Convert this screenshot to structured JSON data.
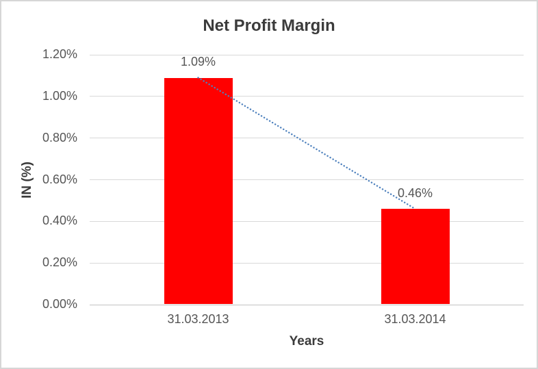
{
  "chart_data": {
    "type": "bar",
    "title": "Net Profit Margin",
    "xlabel": "Years",
    "ylabel": "IN (%)",
    "categories": [
      "31.03.2013",
      "31.03.2014"
    ],
    "values": [
      1.09,
      0.46
    ],
    "data_labels": [
      "1.09%",
      "0.46%"
    ],
    "yticks": [
      {
        "value": 0.0,
        "label": "0.00%"
      },
      {
        "value": 0.2,
        "label": "0.20%"
      },
      {
        "value": 0.4,
        "label": "0.40%"
      },
      {
        "value": 0.6,
        "label": "0.60%"
      },
      {
        "value": 0.8,
        "label": "0.80%"
      },
      {
        "value": 1.0,
        "label": "1.00%"
      },
      {
        "value": 1.2,
        "label": "1.20%"
      }
    ],
    "ylim": [
      0,
      1.2
    ],
    "grid": true,
    "legend": "none",
    "bar_color": "#FF0000",
    "trendline": {
      "type": "linear",
      "style": "dotted",
      "color": "#4E81BD",
      "endpoint_values": [
        1.09,
        0.46
      ]
    },
    "colors": {
      "gridline": "#D9D9D9",
      "axis_line": "#C3C3C3",
      "tick_text": "#555555",
      "title_text": "#3B3B3B",
      "chart_border": "#D6D6D6",
      "background": "#FFFFFF"
    }
  }
}
